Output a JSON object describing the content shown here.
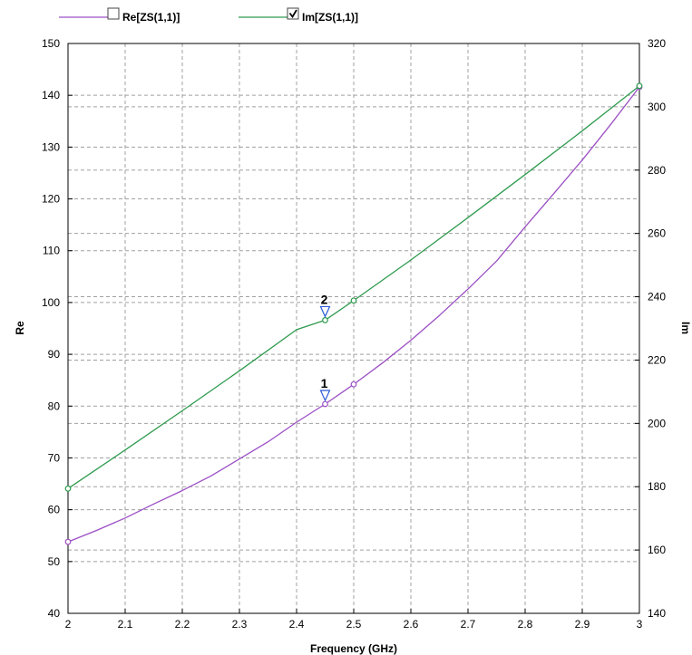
{
  "chart_data": {
    "type": "line",
    "xlabel": "Frequency (GHz)",
    "ylabel_left": "Re",
    "ylabel_right": "Im",
    "xlim": [
      2,
      3
    ],
    "ylim_left": [
      40,
      150
    ],
    "ylim_right": [
      140,
      320
    ],
    "x_ticks": [
      2,
      2.1,
      2.2,
      2.3,
      2.4,
      2.5,
      2.6,
      2.7,
      2.8,
      2.9,
      3
    ],
    "x_tick_labels": [
      "2",
      "2.1",
      "2.2",
      "2.3",
      "2.4",
      "2.5",
      "2.6",
      "2.7",
      "2.8",
      "2.9",
      "3"
    ],
    "y_left_ticks": [
      40,
      50,
      60,
      70,
      80,
      90,
      100,
      110,
      120,
      130,
      140,
      150
    ],
    "y_left_tick_labels": [
      "40",
      "50",
      "60",
      "70",
      "80",
      "90",
      "100",
      "110",
      "120",
      "130",
      "140",
      "150"
    ],
    "y_right_ticks": [
      140,
      160,
      180,
      200,
      220,
      240,
      260,
      280,
      300,
      320
    ],
    "y_right_tick_labels": [
      "140",
      "160",
      "180",
      "200",
      "220",
      "240",
      "260",
      "280",
      "300",
      "320"
    ],
    "grid": true,
    "legend_position": "top-left",
    "series": [
      {
        "name": "Re[ZS(1,1)]",
        "axis": "left",
        "color": "#9b4fc4",
        "checked": false,
        "x": [
          2.0,
          2.05,
          2.1,
          2.15,
          2.2,
          2.25,
          2.3,
          2.35,
          2.4,
          2.45,
          2.5,
          2.55,
          2.6,
          2.65,
          2.7,
          2.75,
          2.8,
          2.85,
          2.9,
          2.95,
          3.0
        ],
        "y": [
          53.8,
          56.0,
          58.4,
          61.1,
          63.7,
          66.5,
          69.8,
          73.1,
          76.9,
          80.4,
          84.2,
          88.3,
          92.7,
          97.5,
          102.6,
          108.0,
          114.6,
          121.0,
          127.5,
          134.4,
          141.6
        ],
        "points": [
          {
            "x": 2.0,
            "y": 53.8
          },
          {
            "x": 2.45,
            "y": 80.4
          },
          {
            "x": 2.5,
            "y": 84.2
          },
          {
            "x": 3.0,
            "y": 141.6
          }
        ]
      },
      {
        "name": "Im[ZS(1,1)]",
        "axis": "right",
        "color": "#2e9a4e",
        "checked": true,
        "x": [
          2.0,
          2.1,
          2.2,
          2.3,
          2.4,
          2.45,
          2.5,
          2.6,
          2.7,
          2.8,
          2.9,
          3.0
        ],
        "y": [
          179.4,
          191.6,
          204.0,
          216.6,
          229.6,
          232.6,
          238.8,
          251.6,
          265.0,
          278.6,
          292.4,
          306.6
        ],
        "points": [
          {
            "x": 2.0,
            "y": 179.4
          },
          {
            "x": 2.45,
            "y": 232.6
          },
          {
            "x": 2.5,
            "y": 238.8
          },
          {
            "x": 3.0,
            "y": 306.6
          }
        ]
      }
    ],
    "markers": [
      {
        "label": "1",
        "series": "Re[ZS(1,1)]",
        "x": 2.45
      },
      {
        "label": "2",
        "series": "Im[ZS(1,1)]",
        "x": 2.45
      }
    ],
    "colors": {
      "grid": "#a0a0a0",
      "frame": "#000000",
      "marker": "#2a5bd7"
    }
  }
}
